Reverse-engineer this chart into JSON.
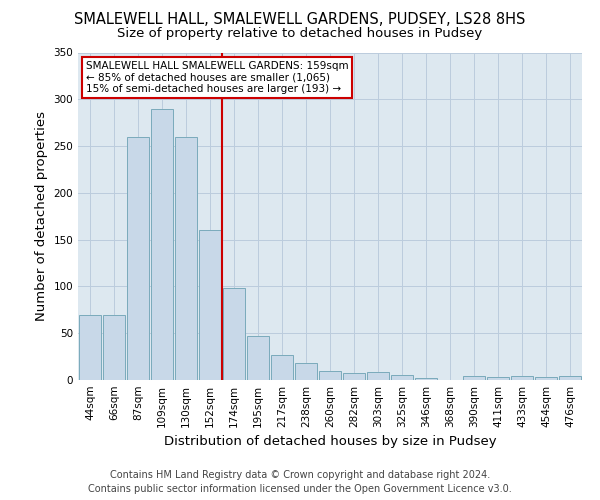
{
  "title": "SMALEWELL HALL, SMALEWELL GARDENS, PUDSEY, LS28 8HS",
  "subtitle": "Size of property relative to detached houses in Pudsey",
  "xlabel": "Distribution of detached houses by size in Pudsey",
  "ylabel": "Number of detached properties",
  "footer_line1": "Contains HM Land Registry data © Crown copyright and database right 2024.",
  "footer_line2": "Contains public sector information licensed under the Open Government Licence v3.0.",
  "categories": [
    "44sqm",
    "66sqm",
    "87sqm",
    "109sqm",
    "130sqm",
    "152sqm",
    "174sqm",
    "195sqm",
    "217sqm",
    "238sqm",
    "260sqm",
    "282sqm",
    "303sqm",
    "325sqm",
    "346sqm",
    "368sqm",
    "390sqm",
    "411sqm",
    "433sqm",
    "454sqm",
    "476sqm"
  ],
  "values": [
    70,
    70,
    260,
    290,
    260,
    160,
    98,
    47,
    27,
    18,
    10,
    8,
    9,
    5,
    2,
    0,
    4,
    3,
    4,
    3,
    4
  ],
  "bar_color": "#c8d8e8",
  "bar_edge_color": "#7aaabb",
  "red_line_index": 6,
  "annotation_title": "SMALEWELL HALL SMALEWELL GARDENS: 159sqm",
  "annotation_line2": "← 85% of detached houses are smaller (1,065)",
  "annotation_line3": "15% of semi-detached houses are larger (193) →",
  "annotation_box_color": "#ffffff",
  "annotation_box_edge": "#cc0000",
  "red_line_color": "#cc0000",
  "ylim": [
    0,
    350
  ],
  "yticks": [
    0,
    50,
    100,
    150,
    200,
    250,
    300,
    350
  ],
  "ax_bg_color": "#dde8f0",
  "background_color": "#ffffff",
  "grid_color": "#bbccdd",
  "title_fontsize": 10.5,
  "subtitle_fontsize": 9.5,
  "axis_label_fontsize": 9.5,
  "tick_fontsize": 7.5,
  "footer_fontsize": 7
}
